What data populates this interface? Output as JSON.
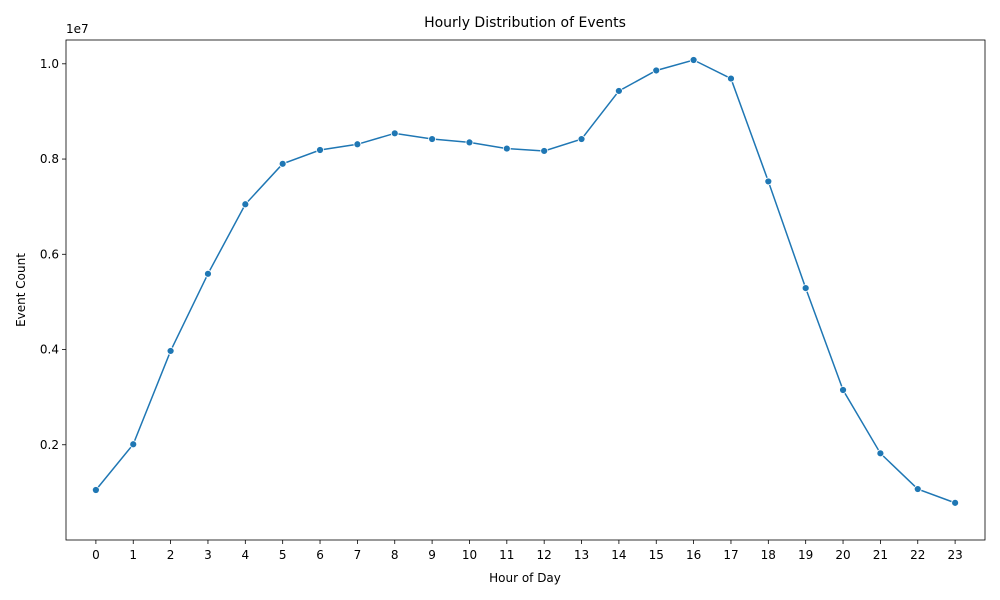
{
  "chart_data": {
    "type": "line",
    "title": "Hourly Distribution of Events",
    "xlabel": "Hour of Day",
    "ylabel": "Event Count",
    "y_offset_text": "1e7",
    "x": [
      0,
      1,
      2,
      3,
      4,
      5,
      6,
      7,
      8,
      9,
      10,
      11,
      12,
      13,
      14,
      15,
      16,
      17,
      18,
      19,
      20,
      21,
      22,
      23
    ],
    "x_tick_labels": [
      "0",
      "1",
      "2",
      "3",
      "4",
      "5",
      "6",
      "7",
      "8",
      "9",
      "10",
      "11",
      "12",
      "13",
      "14",
      "15",
      "16",
      "17",
      "18",
      "19",
      "20",
      "21",
      "22",
      "23"
    ],
    "y_ticks": [
      0.2,
      0.4,
      0.6,
      0.8,
      1.0
    ],
    "y_tick_labels": [
      "0.2",
      "0.4",
      "0.6",
      "0.8",
      "1.0"
    ],
    "series": [
      {
        "values": [
          1050000,
          2010000,
          3970000,
          5590000,
          7050000,
          7900000,
          8190000,
          8310000,
          8540000,
          8420000,
          8350000,
          8220000,
          8170000,
          8420000,
          9430000,
          9860000,
          10080000,
          9690000,
          7530000,
          5290000,
          3150000,
          1820000,
          1070000,
          780000
        ],
        "color": "#1f77b4",
        "marker": "circle"
      }
    ],
    "xlim": [
      -0.8,
      23.8
    ],
    "ylim": [
      0.0,
      1.05
    ],
    "y_unit_scale": 10000000,
    "grid": false,
    "legend": "none"
  }
}
